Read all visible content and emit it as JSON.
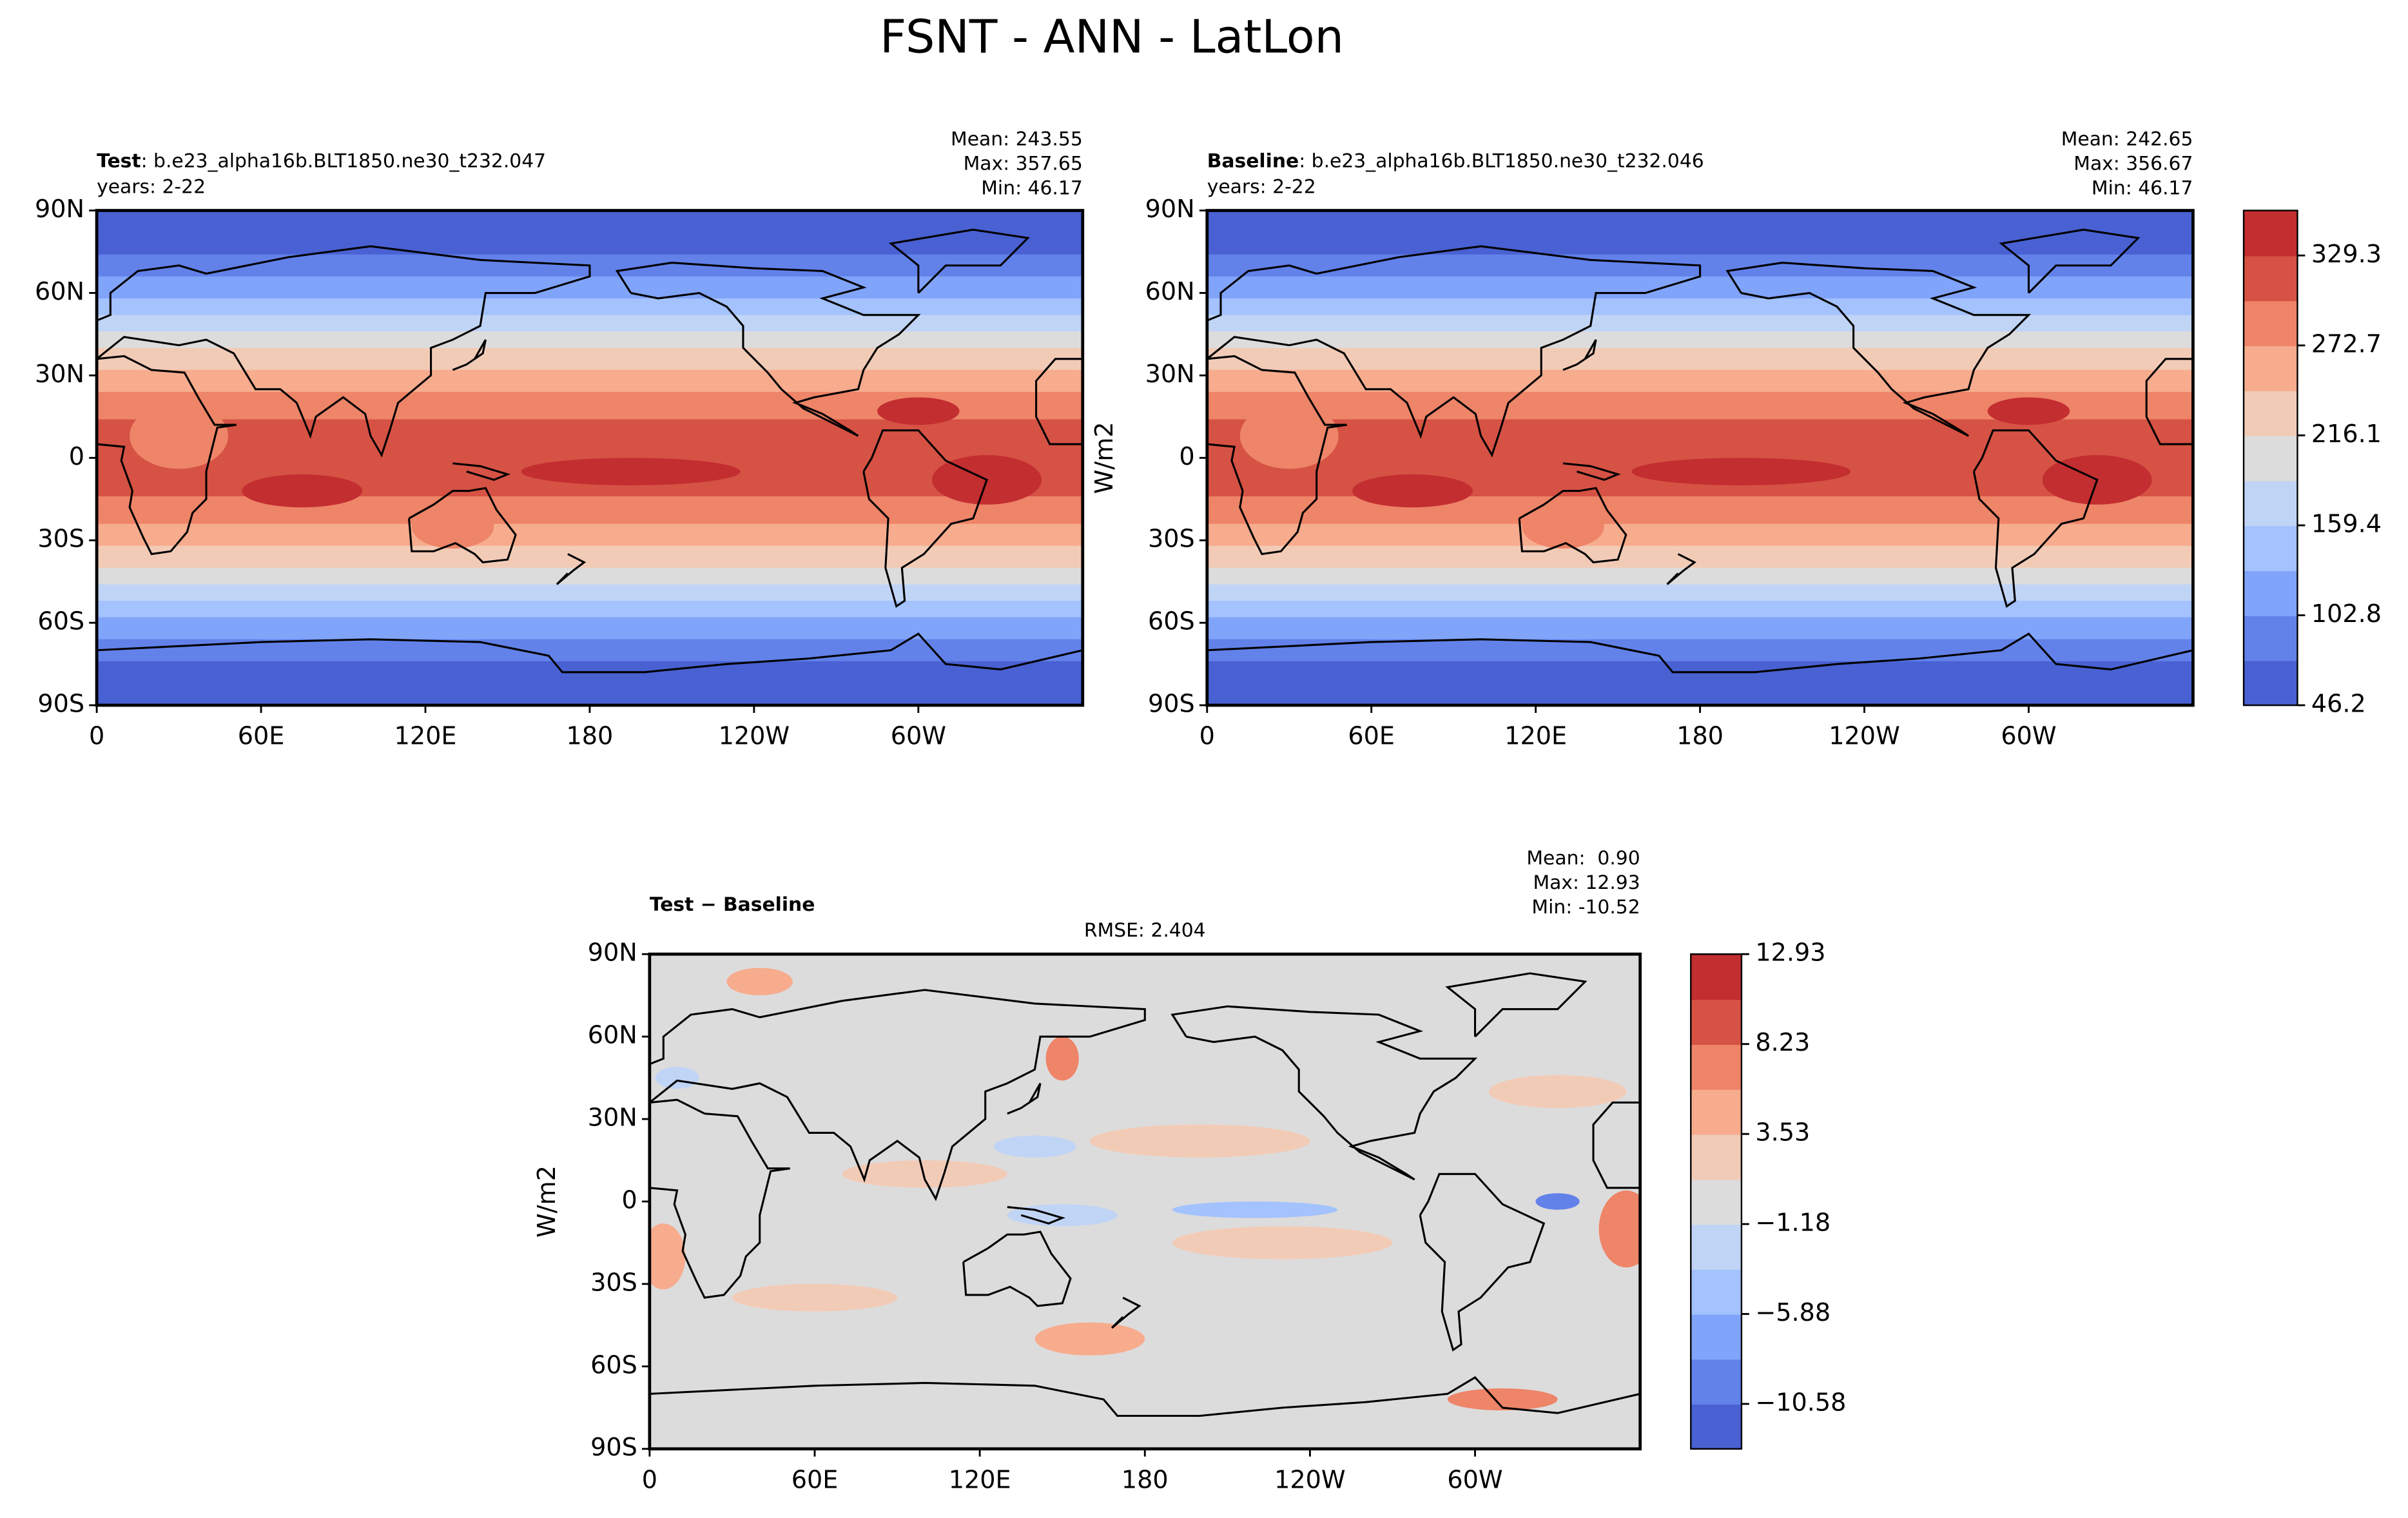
{
  "title": "FSNT - ANN - LatLon",
  "chart_data": [
    {
      "type": "contour-map",
      "label_bold": "Test",
      "label": ": b.e23_alpha16b.BLT1850.ne30_t232.047",
      "subtitle": "years: 2-22",
      "stats": [
        "Mean: 243.55",
        "Max: 357.65",
        "Min: 46.17"
      ],
      "xlim": [
        0,
        360
      ],
      "xticks": [
        0,
        {
          "value": 60,
          "label": "60E"
        },
        {
          "value": 120,
          "label": "120E"
        },
        180,
        {
          "value": 240,
          "label": "120W"
        },
        {
          "value": 300,
          "label": "60W"
        }
      ],
      "ylim": [
        -90,
        90
      ],
      "yticks": [
        {
          "value": -90,
          "label": "90S"
        },
        {
          "value": -60,
          "label": "60S"
        },
        {
          "value": -30,
          "label": "30S"
        },
        0,
        {
          "value": 30,
          "label": "30N"
        },
        {
          "value": 60,
          "label": "60N"
        },
        {
          "value": 90,
          "label": "90N"
        }
      ]
    },
    {
      "type": "contour-map",
      "label_bold": "Baseline",
      "label": ": b.e23_alpha16b.BLT1850.ne30_t232.046",
      "subtitle": "years: 2-22",
      "stats": [
        "Mean: 242.65",
        "Max: 356.67",
        "Min: 46.17"
      ],
      "units": "W/m2",
      "xlim": [
        0,
        360
      ],
      "xticks": [
        0,
        {
          "value": 60,
          "label": "60E"
        },
        {
          "value": 120,
          "label": "120E"
        },
        180,
        {
          "value": 240,
          "label": "120W"
        },
        {
          "value": 300,
          "label": "60W"
        }
      ],
      "ylim": [
        -90,
        90
      ],
      "yticks": [
        {
          "value": -90,
          "label": "90S"
        },
        {
          "value": -60,
          "label": "60S"
        },
        {
          "value": -30,
          "label": "30S"
        },
        0,
        {
          "value": 30,
          "label": "30N"
        },
        {
          "value": 60,
          "label": "60N"
        },
        {
          "value": 90,
          "label": "90N"
        }
      ],
      "colorbar": {
        "ylim": [
          46.17,
          357.65
        ],
        "yticks": [
          {
            "value": 46.17,
            "label": "46.2"
          },
          102.8,
          {
            "value": 159.43,
            "label": "159.4"
          },
          {
            "value": 216.07,
            "label": "216.1"
          },
          272.7,
          {
            "value": 329.33,
            "label": "329.3"
          }
        ],
        "colors": [
          "#4961d2",
          "#6282ea",
          "#81a4fb",
          "#a3c2fe",
          "#c0d4f5",
          "#dddcdc",
          "#f2cbb7",
          "#f7ac8e",
          "#ee8468",
          "#d65244",
          "#c32e31"
        ]
      }
    },
    {
      "type": "contour-map",
      "label_bold": "Test − Baseline",
      "note": "RMSE: 2.404",
      "stats": [
        "Mean:  0.90",
        "Max: 12.93",
        "Min: -10.52"
      ],
      "units": "W/m2",
      "xlim": [
        0,
        360
      ],
      "xticks": [
        0,
        {
          "value": 60,
          "label": "60E"
        },
        {
          "value": 120,
          "label": "120E"
        },
        180,
        {
          "value": 240,
          "label": "120W"
        },
        {
          "value": 300,
          "label": "60W"
        }
      ],
      "ylim": [
        -90,
        90
      ],
      "yticks": [
        {
          "value": -90,
          "label": "90S"
        },
        {
          "value": -60,
          "label": "60S"
        },
        {
          "value": -30,
          "label": "30S"
        },
        0,
        {
          "value": 30,
          "label": "30N"
        },
        {
          "value": 60,
          "label": "60N"
        },
        {
          "value": 90,
          "label": "90N"
        }
      ],
      "colorbar": {
        "ylim": [
          -12.93,
          12.93
        ],
        "yticks": [
          {
            "value": -10.58,
            "label": "−10.58"
          },
          {
            "value": -5.88,
            "label": "−5.88"
          },
          {
            "value": -1.18,
            "label": "−1.18"
          },
          3.53,
          8.23,
          12.93
        ],
        "colors": [
          "#4961d2",
          "#6282ea",
          "#81a4fb",
          "#a3c2fe",
          "#c0d4f5",
          "#dddcdc",
          "#f2cbb7",
          "#f7ac8e",
          "#ee8468",
          "#d65244",
          "#c32e31"
        ]
      }
    }
  ]
}
